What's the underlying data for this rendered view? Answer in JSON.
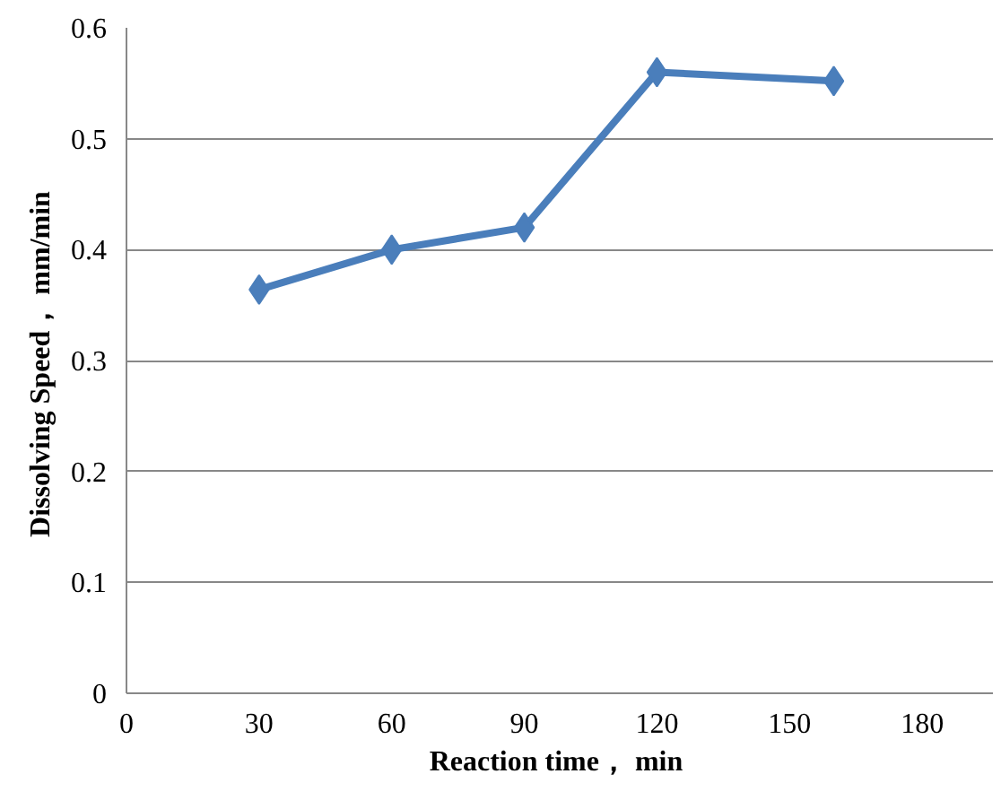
{
  "chart_data": {
    "type": "line",
    "xlabel": "Reaction time，  min",
    "ylabel": "Dissolving Speed，  mm/min",
    "x": [
      30,
      60,
      90,
      120,
      160
    ],
    "series": [
      {
        "color": "#4a7ebb",
        "values": [
          0.364,
          0.4,
          0.42,
          0.56,
          0.552
        ]
      }
    ],
    "xlim": [
      0,
      196
    ],
    "xticks": [
      0,
      30,
      60,
      90,
      120,
      150,
      180
    ],
    "ylim": [
      0,
      0.6
    ],
    "yticks": [
      0,
      0.1,
      0.2,
      0.3,
      0.4,
      0.5,
      0.6
    ],
    "grid": "y",
    "marker": "diamond",
    "line_style": "solid"
  }
}
